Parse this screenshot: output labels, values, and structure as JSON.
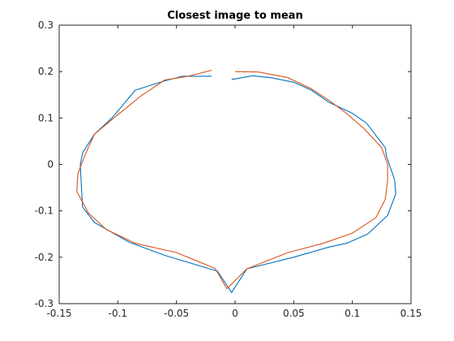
{
  "chart_data": {
    "type": "line",
    "title": "Closest image to mean",
    "xlabel": "",
    "ylabel": "",
    "xlim": [
      -0.15,
      0.15
    ],
    "ylim": [
      -0.3,
      0.3
    ],
    "x_ticks": [
      -0.15,
      -0.1,
      -0.05,
      0,
      0.05,
      0.1,
      0.15
    ],
    "x_tick_labels": [
      "-0.15",
      "-0.1",
      "-0.05",
      "0",
      "0.05",
      "0.1",
      "0.15"
    ],
    "y_ticks": [
      -0.3,
      -0.2,
      -0.1,
      0,
      0.1,
      0.2,
      0.3
    ],
    "y_tick_labels": [
      "-0.3",
      "-0.2",
      "-0.1",
      "0",
      "0.1",
      "0.2",
      "0.3"
    ],
    "grid": false,
    "series": [
      {
        "color": "#0072BD",
        "points": [
          [
            -0.003,
            0.183
          ],
          [
            0.015,
            0.191
          ],
          [
            0.03,
            0.187
          ],
          [
            0.05,
            0.177
          ],
          [
            0.065,
            0.16
          ],
          [
            0.08,
            0.134
          ],
          [
            0.1,
            0.11
          ],
          [
            0.112,
            0.089
          ],
          [
            0.128,
            0.036
          ],
          [
            0.129,
            0.018
          ],
          [
            0.136,
            -0.033
          ],
          [
            0.137,
            -0.063
          ],
          [
            0.13,
            -0.11
          ],
          [
            0.113,
            -0.15
          ],
          [
            0.095,
            -0.17
          ],
          [
            0.08,
            -0.178
          ],
          [
            0.05,
            -0.2
          ],
          [
            0.01,
            -0.225
          ],
          [
            -0.003,
            -0.276
          ],
          [
            -0.015,
            -0.23
          ],
          [
            -0.06,
            -0.196
          ],
          [
            -0.09,
            -0.168
          ],
          [
            -0.12,
            -0.125
          ],
          [
            -0.13,
            -0.092
          ],
          [
            -0.131,
            -0.05
          ],
          [
            -0.132,
            0.0
          ],
          [
            -0.13,
            0.025
          ],
          [
            -0.12,
            0.065
          ],
          [
            -0.105,
            0.1
          ],
          [
            -0.085,
            0.16
          ],
          [
            -0.06,
            0.18
          ],
          [
            -0.045,
            0.19
          ],
          [
            -0.02,
            0.19
          ]
        ]
      },
      {
        "color": "#D95319",
        "points": [
          [
            0.0,
            0.2
          ],
          [
            0.02,
            0.199
          ],
          [
            0.045,
            0.187
          ],
          [
            0.065,
            0.163
          ],
          [
            0.08,
            0.138
          ],
          [
            0.095,
            0.11
          ],
          [
            0.11,
            0.077
          ],
          [
            0.125,
            0.036
          ],
          [
            0.13,
            0.0
          ],
          [
            0.13,
            -0.035
          ],
          [
            0.128,
            -0.075
          ],
          [
            0.12,
            -0.115
          ],
          [
            0.1,
            -0.148
          ],
          [
            0.075,
            -0.17
          ],
          [
            0.045,
            -0.19
          ],
          [
            0.01,
            -0.225
          ],
          [
            -0.007,
            -0.268
          ],
          [
            -0.017,
            -0.224
          ],
          [
            -0.05,
            -0.19
          ],
          [
            -0.085,
            -0.17
          ],
          [
            -0.11,
            -0.14
          ],
          [
            -0.125,
            -0.105
          ],
          [
            -0.135,
            -0.058
          ],
          [
            -0.134,
            -0.02
          ],
          [
            -0.128,
            0.02
          ],
          [
            -0.12,
            0.065
          ],
          [
            -0.1,
            0.107
          ],
          [
            -0.08,
            0.148
          ],
          [
            -0.06,
            0.182
          ],
          [
            -0.04,
            0.19
          ],
          [
            -0.02,
            0.203
          ]
        ]
      }
    ]
  }
}
